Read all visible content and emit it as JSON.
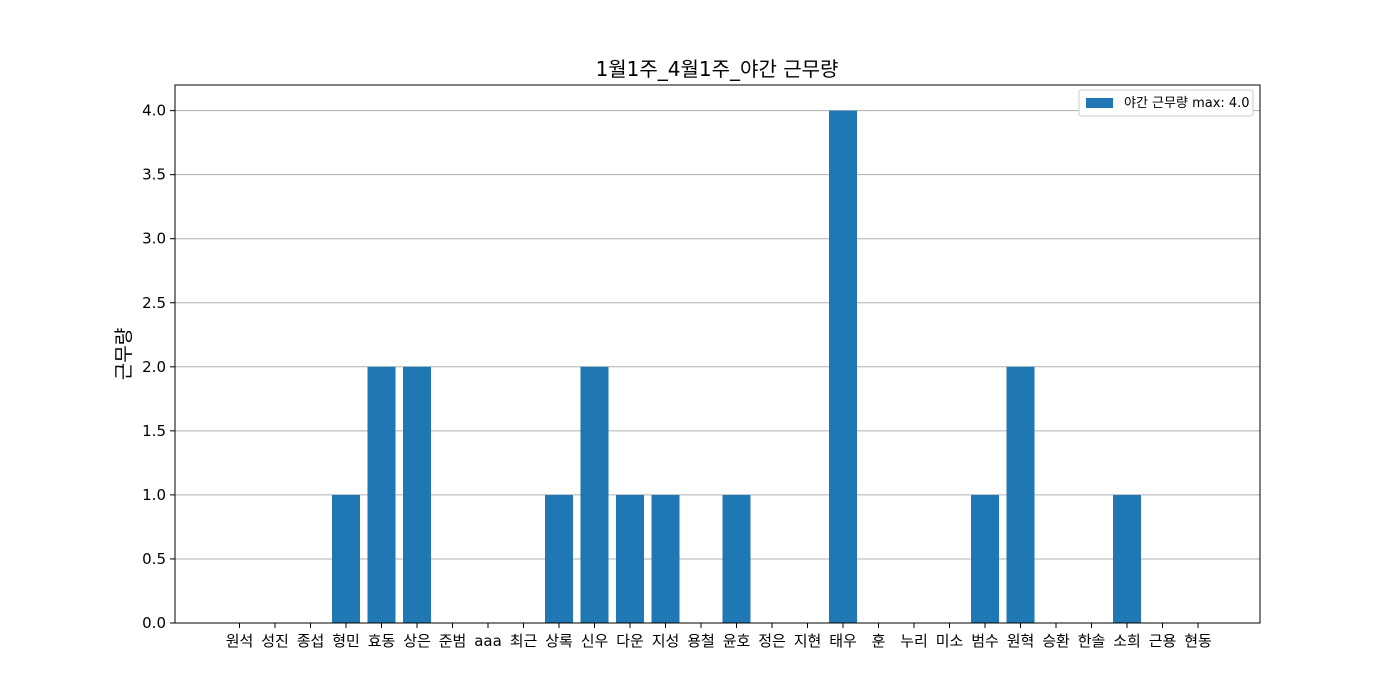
{
  "chart_data": {
    "type": "bar",
    "title": "1월1주_4월1주_야간 근무량",
    "xlabel": "",
    "ylabel": "근무량",
    "categories": [
      "원석",
      "성진",
      "종섭",
      "형민",
      "효동",
      "상은",
      "준범",
      "aaa",
      "최근",
      "상록",
      "신우",
      "다운",
      "지성",
      "용철",
      "윤호",
      "정은",
      "지현",
      "태우",
      "훈",
      "누리",
      "미소",
      "범수",
      "원혁",
      "승환",
      "한솔",
      "소희",
      "근용",
      "현동"
    ],
    "series": [
      {
        "name": "야간 근무량 max: 4.0",
        "values": [
          0,
          0,
          0,
          1,
          2,
          2,
          0,
          0,
          0,
          1,
          2,
          1,
          1,
          0,
          1,
          0,
          0,
          4,
          0,
          0,
          0,
          1,
          2,
          0,
          0,
          1,
          0,
          0
        ],
        "color": "#1f77b4"
      }
    ],
    "ylim": [
      0,
      4.2
    ],
    "yticks": [
      "0.0",
      "0.5",
      "1.0",
      "1.5",
      "2.0",
      "2.5",
      "3.0",
      "3.5",
      "4.0"
    ],
    "grid": "horizontal",
    "legend_position": "top-right"
  }
}
